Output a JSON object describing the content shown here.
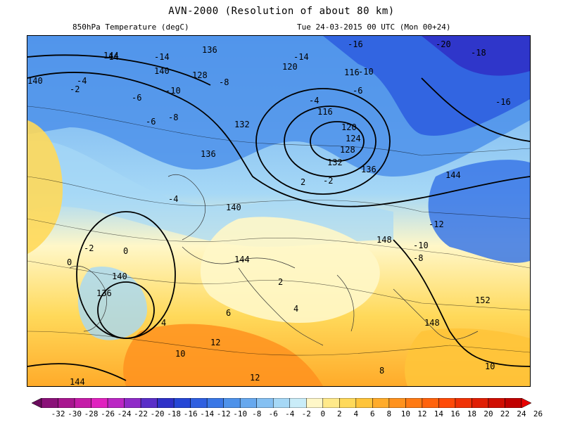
{
  "title": "AVN-2000 (Resolution of about 80 km)",
  "field_label": "850hPa Temperature (degC)",
  "valid_time": "Tue 24-03-2015 00 UTC (Mon 00+24)",
  "legend": {
    "ticks": [
      "-32",
      "-30",
      "-28",
      "-26",
      "-24",
      "-22",
      "-20",
      "-18",
      "-16",
      "-14",
      "-12",
      "-10",
      "-8",
      "-6",
      "-4",
      "-2",
      "0",
      "2",
      "4",
      "6",
      "8",
      "10",
      "12",
      "14",
      "16",
      "18",
      "20",
      "22",
      "24",
      "26"
    ],
    "colors": [
      "#6a0d5c",
      "#8a1178",
      "#a8168f",
      "#c51ca8",
      "#e022bf",
      "#bb27c4",
      "#8f2bc8",
      "#5a2ec8",
      "#2f31c8",
      "#2647d6",
      "#2f5fe0",
      "#3a77e6",
      "#4e92ea",
      "#67a8ee",
      "#85c0f2",
      "#a6d8f6",
      "#c9ecf8",
      "#fff7c8",
      "#ffe98a",
      "#ffd95a",
      "#ffc43a",
      "#ffab2a",
      "#ff921e",
      "#ff7a14",
      "#ff620c",
      "#ff4a08",
      "#f03206",
      "#e01e04",
      "#d00e02",
      "#c00000",
      "#e80000"
    ]
  },
  "map": {
    "temp_labels": [
      "-20",
      "-18",
      "-16",
      "-16",
      "-14",
      "-14",
      "-14",
      "-12",
      "-10",
      "-10",
      "-10",
      "-8",
      "-8",
      "-8",
      "-6",
      "-6",
      "-6",
      "-4",
      "-4",
      "-4",
      "-2",
      "-2",
      "-2",
      "0",
      "0",
      "2",
      "2",
      "4",
      "4",
      "6",
      "8",
      "10",
      "10",
      "12",
      "12"
    ],
    "height_labels": [
      "152",
      "148",
      "148",
      "144",
      "144",
      "144",
      "144",
      "140",
      "140",
      "140",
      "140",
      "136",
      "136",
      "136",
      "136",
      "132",
      "132",
      "128",
      "128",
      "124",
      "120",
      "120",
      "116",
      "116"
    ]
  }
}
